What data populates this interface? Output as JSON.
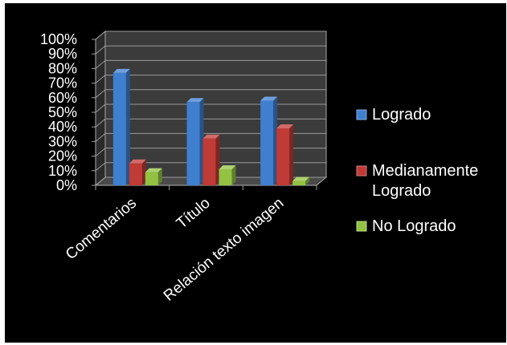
{
  "chart_data": {
    "type": "bar",
    "title": "",
    "xlabel": "",
    "ylabel": "",
    "ylim": [
      0,
      100
    ],
    "y_tick_format": "{v}%",
    "y_ticks": [
      0,
      10,
      20,
      30,
      40,
      50,
      60,
      70,
      80,
      90,
      100
    ],
    "categories": [
      "Comentarios",
      "Título",
      "Relación texto imagen"
    ],
    "series": [
      {
        "name": "Logrado",
        "values": [
          77,
          57,
          58
        ],
        "color": "#3f7fd0"
      },
      {
        "name": "Medianamente Logrado",
        "values": [
          15,
          32,
          39
        ],
        "color": "#c03a36"
      },
      {
        "name": "No Logrado",
        "values": [
          9,
          11,
          3
        ],
        "color": "#93c243"
      }
    ],
    "legend_position": "right",
    "grid": true,
    "style": "3d-clustered-columns",
    "background": "#000000",
    "text_color": "#ffffff"
  }
}
